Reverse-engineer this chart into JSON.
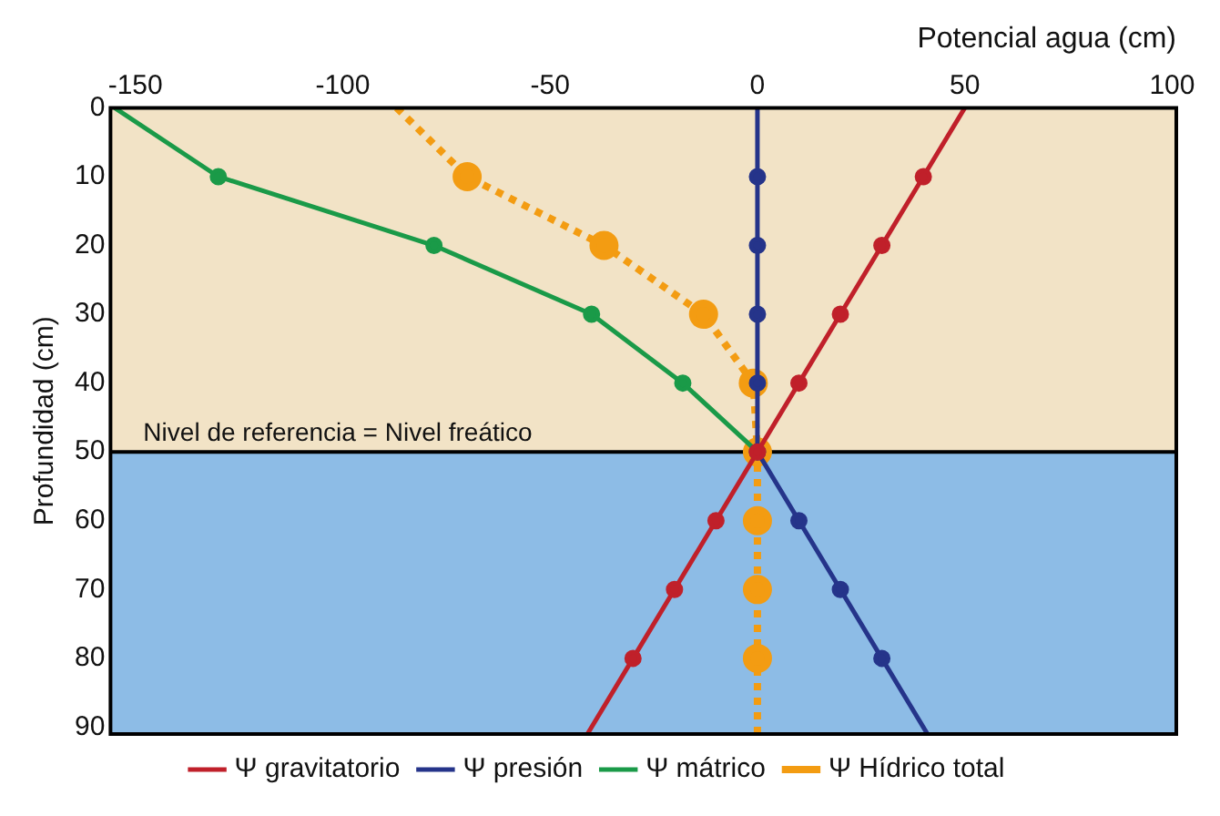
{
  "chart_data": {
    "type": "line",
    "xlabel": "Potencial agua (cm)",
    "ylabel": "Profundidad (cm)",
    "xlim": [
      -156,
      101
    ],
    "xticks": [
      -150,
      -100,
      -50,
      0,
      50,
      100
    ],
    "ylim": [
      91,
      0
    ],
    "yticks": [
      0,
      10,
      20,
      30,
      40,
      50,
      60,
      70,
      80,
      90
    ],
    "legend": "bottom",
    "marker": "circle",
    "bands": [
      {
        "axis": "y",
        "from": 0,
        "to": 50,
        "color": "#f2e3c6"
      },
      {
        "axis": "y",
        "from": 50,
        "to": 91,
        "color": "#8dbce6"
      }
    ],
    "ref_lines": [
      {
        "axis": "y",
        "value": 50,
        "label": "Nivel de referencia = Nivel freático",
        "color": "#000000"
      }
    ],
    "series": [
      {
        "name": "Ψ gravitatorio",
        "color": "#c0202a",
        "line_style": "solid",
        "x": [
          50,
          40,
          30,
          20,
          10,
          0,
          -10,
          -20,
          -30,
          -41
        ],
        "values": [
          0,
          10,
          20,
          30,
          40,
          50,
          60,
          70,
          80,
          91
        ]
      },
      {
        "name": "Ψ presión",
        "color": "#25348a",
        "line_style": "solid",
        "x": [
          0,
          0,
          0,
          0,
          0,
          0,
          10,
          20,
          30,
          41
        ],
        "values": [
          0,
          10,
          20,
          30,
          40,
          50,
          60,
          70,
          80,
          91
        ]
      },
      {
        "name": "Ψ mátrico",
        "color": "#1a9a48",
        "line_style": "solid",
        "x": [
          -155,
          -130,
          -78,
          -40,
          -18,
          0
        ],
        "values": [
          0,
          10,
          20,
          30,
          40,
          50
        ]
      },
      {
        "name": "Ψ Hídrico total",
        "color": "#f39c12",
        "line_style": "dotted",
        "x": [
          -87,
          -70,
          -37,
          -13,
          -1,
          0,
          0,
          0,
          0,
          0
        ],
        "values": [
          0,
          10,
          20,
          30,
          40,
          50,
          60,
          70,
          80,
          91
        ]
      }
    ]
  }
}
